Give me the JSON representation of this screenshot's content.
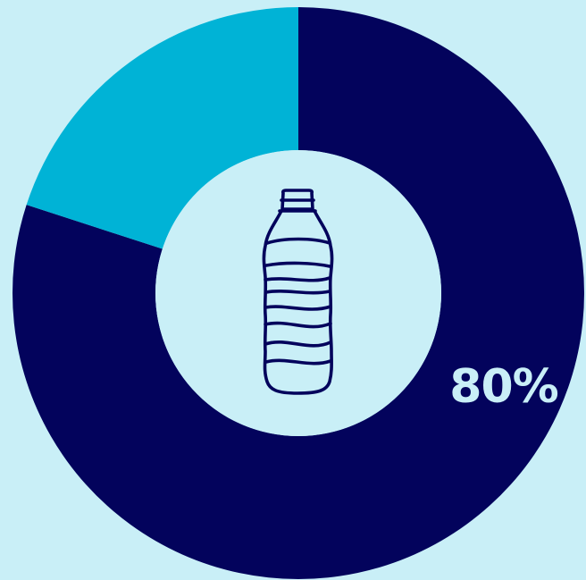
{
  "colors": {
    "background": "#c9eff7",
    "primary_slice": "#03035c",
    "secondary_slice": "#00b3d6",
    "label": "#c9eff7",
    "icon_stroke": "#03035c"
  },
  "center_icon": "water-bottle-icon",
  "chart_data": {
    "type": "pie",
    "variant": "donut",
    "categories": [
      "",
      ""
    ],
    "values": [
      80,
      20
    ],
    "units": "%",
    "data_labels": [
      "80%",
      ""
    ],
    "title": "",
    "legend": "none"
  }
}
